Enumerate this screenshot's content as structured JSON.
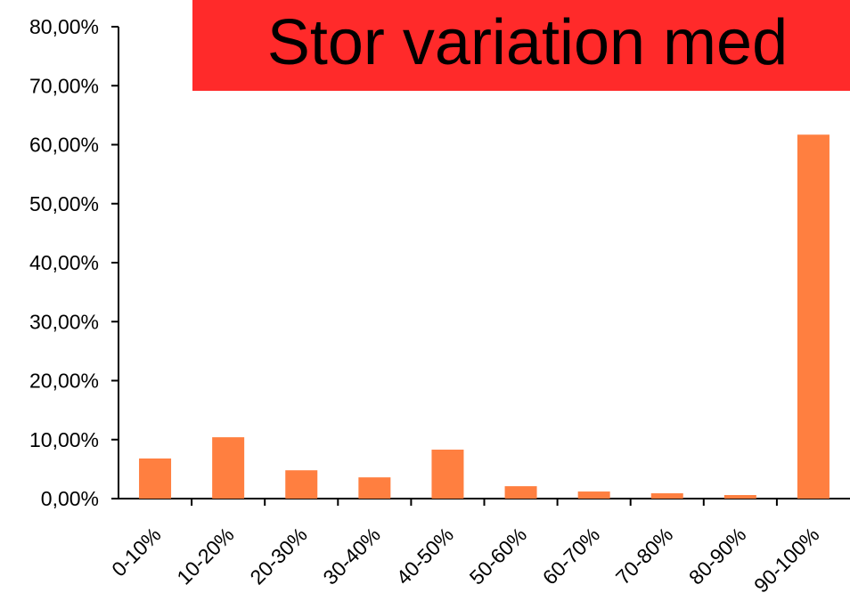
{
  "chart_data": {
    "type": "bar",
    "title": "Stor variation med",
    "categories": [
      "0-10%",
      "10-20%",
      "20-30%",
      "30-40%",
      "40-50%",
      "50-60%",
      "60-70%",
      "70-80%",
      "80-90%",
      "90-100%"
    ],
    "values": [
      6.8,
      10.4,
      4.8,
      3.6,
      8.3,
      2.1,
      1.2,
      0.9,
      0.6,
      61.7
    ],
    "color": "#ff7f40",
    "title_background": "#ff2a2a",
    "ylim": [
      0,
      80
    ],
    "yticks": [
      {
        "value": 0,
        "label": "0,00%"
      },
      {
        "value": 10,
        "label": "10,00%"
      },
      {
        "value": 20,
        "label": "20,00%"
      },
      {
        "value": 30,
        "label": "30,00%"
      },
      {
        "value": 40,
        "label": "40,00%"
      },
      {
        "value": 50,
        "label": "50,00%"
      },
      {
        "value": 60,
        "label": "60,00%"
      },
      {
        "value": 70,
        "label": "70,00%"
      },
      {
        "value": 80,
        "label": "80,00%"
      }
    ],
    "grid": false
  }
}
